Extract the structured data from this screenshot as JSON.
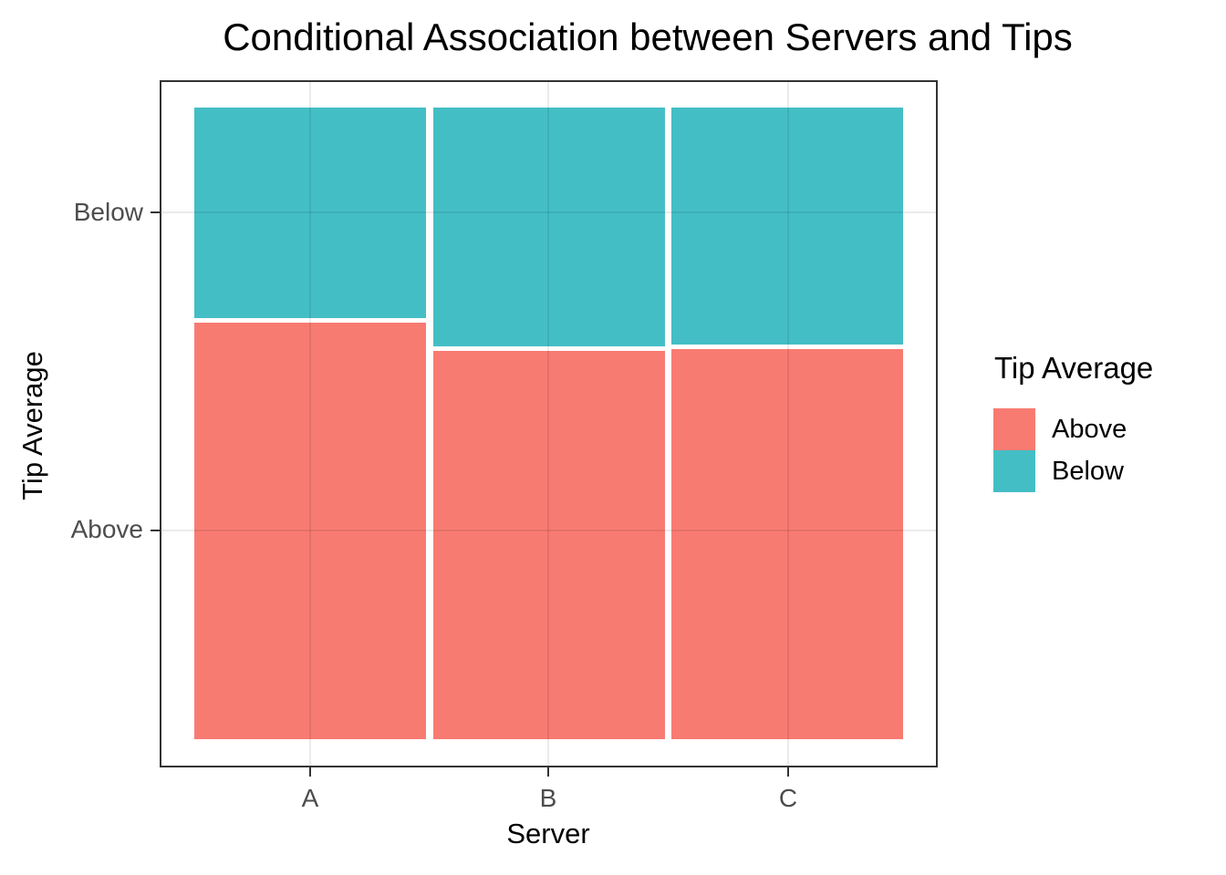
{
  "title": "Conditional Association between Servers and Tips",
  "axes": {
    "x_label": "Server",
    "y_label": "Tip Average",
    "x_tick_labels": [
      "A",
      "B",
      "C"
    ],
    "y_tick_labels": [
      "Below",
      "Above"
    ]
  },
  "legend": {
    "title": "Tip Average",
    "items": [
      {
        "label": "Above",
        "color": "#F87B72"
      },
      {
        "label": "Below",
        "color": "#44BEC5"
      }
    ]
  },
  "colors": {
    "above_fill": "#F87B72",
    "below_fill": "#44BEC5",
    "panel_border": "#333333",
    "tick_label": "#4D4D4D",
    "gridline": "#EBEBEB",
    "title_text": "#000000"
  },
  "chart_data": {
    "type": "mosaic",
    "title": "Conditional Association between Servers and Tips",
    "xlabel": "Server",
    "ylabel": "Tip Average",
    "categories": [
      "A",
      "B",
      "C"
    ],
    "column_width_proportions": [
      0.333,
      0.334,
      0.333
    ],
    "series": [
      {
        "name": "Below",
        "color": "#44BEC5",
        "proportions": [
          0.335,
          0.381,
          0.378
        ]
      },
      {
        "name": "Above",
        "color": "#F87B72",
        "proportions": [
          0.665,
          0.619,
          0.622
        ]
      }
    ],
    "stack_order_top_to_bottom": [
      "Below",
      "Above"
    ],
    "y_axis_categories_top_to_bottom": [
      "Below",
      "Above"
    ],
    "grid": true,
    "legend_position": "right",
    "panel_theme": "bw"
  }
}
